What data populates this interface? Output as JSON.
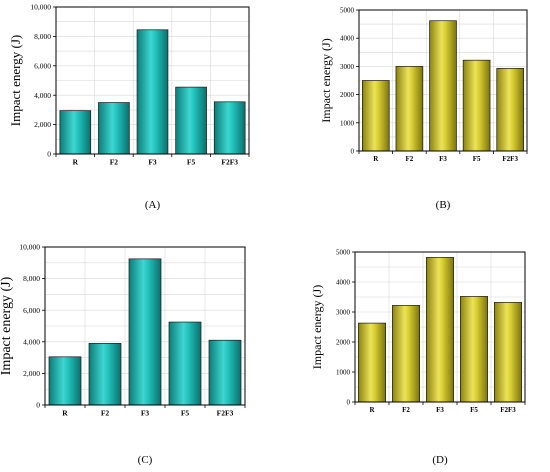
{
  "colors": {
    "teal": "#19b3ae",
    "olive": "#c9bf25",
    "grid": "#d8d8d8",
    "frame": "#000000"
  },
  "chart_data": [
    {
      "type": "bar",
      "panel_label": "(A)",
      "ylabel": "Impact energy (J)",
      "categories": [
        "R",
        "F2",
        "F3",
        "F5",
        "F2F3"
      ],
      "values": [
        2950,
        3500,
        8450,
        4550,
        3550
      ],
      "ylim": [
        0,
        10000
      ],
      "yticks": [
        0,
        2000,
        4000,
        6000,
        8000,
        10000
      ],
      "ytick_labels": [
        "0",
        "2,000",
        "4,000",
        "6,000",
        "8,000",
        "10,000"
      ],
      "color": "teal",
      "grid": true
    },
    {
      "type": "bar",
      "panel_label": "(B)",
      "ylabel": "Impact energy (J)",
      "categories": [
        "R",
        "F2",
        "F3",
        "F5",
        "F2F3"
      ],
      "values": [
        2500,
        3000,
        4620,
        3220,
        2930
      ],
      "ylim": [
        0,
        5000
      ],
      "yticks": [
        0,
        1000,
        2000,
        3000,
        4000,
        5000
      ],
      "ytick_labels": [
        "0",
        "1000",
        "2000",
        "3000",
        "4000",
        "5000"
      ],
      "color": "olive",
      "grid": true
    },
    {
      "type": "bar",
      "panel_label": "(C)",
      "ylabel": "Impact energy (J)",
      "categories": [
        "R",
        "F2",
        "F3",
        "F5",
        "F2F3"
      ],
      "values": [
        3050,
        3900,
        9250,
        5250,
        4100
      ],
      "ylim": [
        0,
        10000
      ],
      "yticks": [
        0,
        2000,
        4000,
        6000,
        8000,
        10000
      ],
      "ytick_labels": [
        "0",
        "2,000",
        "4,000",
        "6,000",
        "8,000",
        "10,000"
      ],
      "color": "teal",
      "grid": true
    },
    {
      "type": "bar",
      "panel_label": "(D)",
      "ylabel": "Impact energy (J)",
      "categories": [
        "R",
        "F2",
        "F3",
        "F5",
        "F2F3"
      ],
      "values": [
        2630,
        3220,
        4820,
        3520,
        3320
      ],
      "ylim": [
        0,
        5000
      ],
      "yticks": [
        0,
        1000,
        2000,
        3000,
        4000,
        5000
      ],
      "ytick_labels": [
        "0",
        "1000",
        "2000",
        "3000",
        "4000",
        "5000"
      ],
      "color": "olive",
      "grid": true
    }
  ]
}
